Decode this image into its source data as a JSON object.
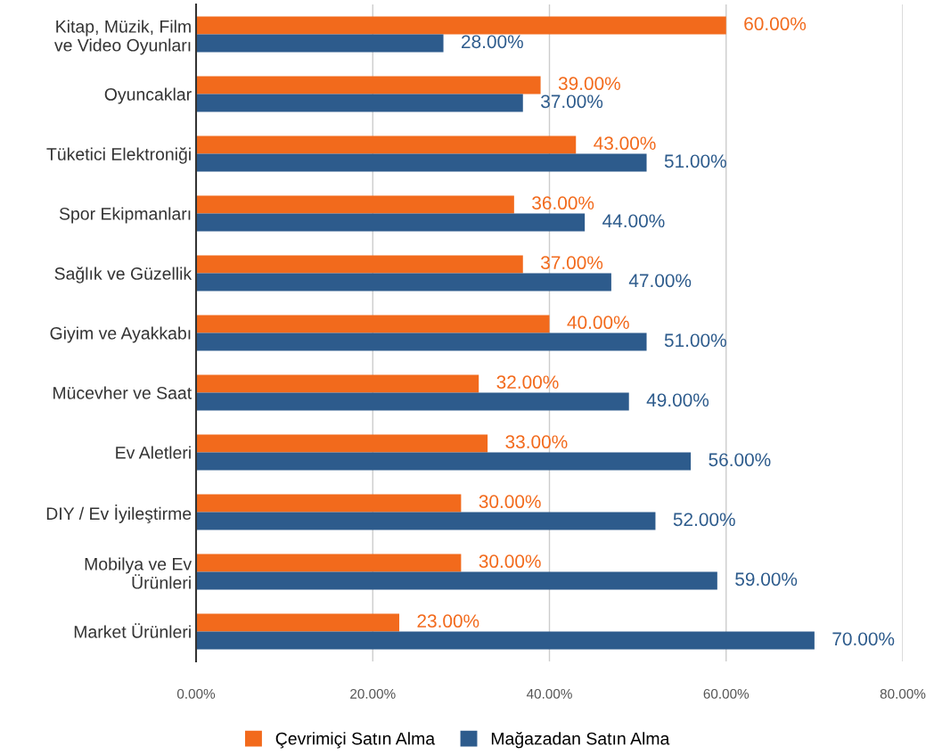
{
  "chart_data": {
    "type": "bar",
    "orientation": "horizontal",
    "categories": [
      "Kitap, Müzik, Film\nve Video Oyunları",
      "Oyuncaklar",
      "Tüketici Elektroniği",
      "Spor Ekipmanları",
      "Sağlık ve Güzellik",
      "Giyim ve Ayakkabı",
      "Mücevher ve Saat",
      "Ev Aletleri",
      "DIY / Ev İyileştirme",
      "Mobilya ve Ev\nÜrünleri",
      "Market Ürünleri"
    ],
    "series": [
      {
        "name": "Çevrimiçi Satın Alma",
        "color": "#f26a1c",
        "values": [
          60,
          39,
          43,
          36,
          37,
          40,
          32,
          33,
          30,
          30,
          23
        ],
        "value_labels": [
          "60.00%",
          "39.00%",
          "43.00%",
          "36.00%",
          "37.00%",
          "40.00%",
          "32.00%",
          "33.00%",
          "30.00%",
          "30.00%",
          "23.00%"
        ]
      },
      {
        "name": "Mağazadan Satın Alma",
        "color": "#2d5b8c",
        "values": [
          28,
          37,
          51,
          44,
          47,
          51,
          49,
          56,
          52,
          59,
          70
        ],
        "value_labels": [
          "28.00%",
          "37.00%",
          "51.00%",
          "44.00%",
          "47.00%",
          "51.00%",
          "49.00%",
          "56.00%",
          "52.00%",
          "59.00%",
          "70.00%"
        ]
      }
    ],
    "xlim": [
      0,
      80
    ],
    "xticks": [
      {
        "value": 0,
        "label": "0.00%"
      },
      {
        "value": 20,
        "label": "20.00%"
      },
      {
        "value": 40,
        "label": "40.00%"
      },
      {
        "value": 60,
        "label": "60.00%"
      },
      {
        "value": 80,
        "label": "80.00%"
      }
    ],
    "grid": "x",
    "legend": "bottom"
  }
}
